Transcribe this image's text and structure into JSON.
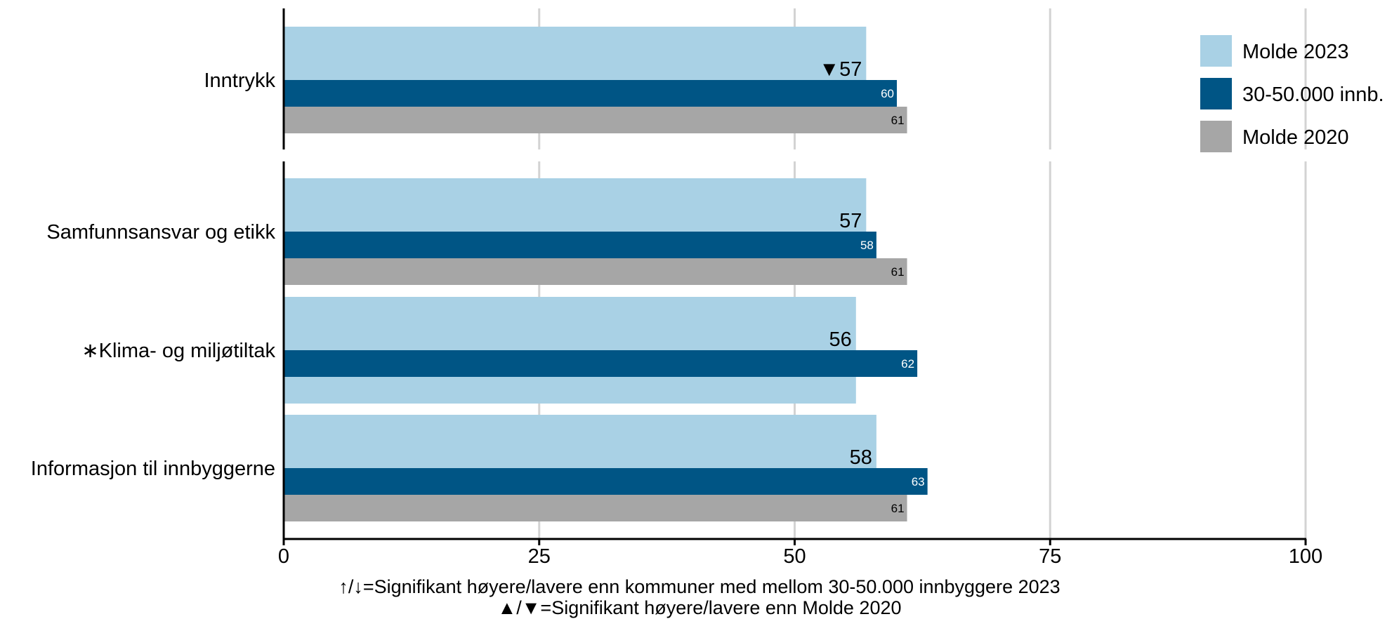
{
  "chart_data": {
    "type": "bar",
    "orientation": "horizontal",
    "xlim": [
      0,
      100
    ],
    "xticks": [
      "0",
      "25",
      "50",
      "75",
      "100"
    ],
    "grid": true,
    "legend_position": "top-right",
    "series": [
      {
        "name": "Molde 2023",
        "color": "#a9d1e5"
      },
      {
        "name": "30-50.000 innb.",
        "color": "#005585"
      },
      {
        "name": "Molde 2020",
        "color": "#a6a6a6"
      }
    ],
    "groups": [
      {
        "category": "Inntrykk",
        "values": [
          57,
          60,
          61
        ],
        "main_label": "▼57"
      },
      {
        "category": "Samfunnsansvar og etikk",
        "values": [
          57,
          58,
          61
        ],
        "main_label": "57"
      },
      {
        "category": "∗Klima- og miljøtiltak",
        "values": [
          56,
          62,
          null
        ],
        "main_label": "56"
      },
      {
        "category": "Informasjon til innbyggerne",
        "values": [
          58,
          63,
          61
        ],
        "main_label": "58"
      }
    ],
    "notes": [
      "↑/↓=Signifikant høyere/lavere enn kommuner med mellom 30-50.000 innbyggere 2023",
      "▲/▼=Signifikant høyere/lavere enn Molde 2020"
    ]
  }
}
